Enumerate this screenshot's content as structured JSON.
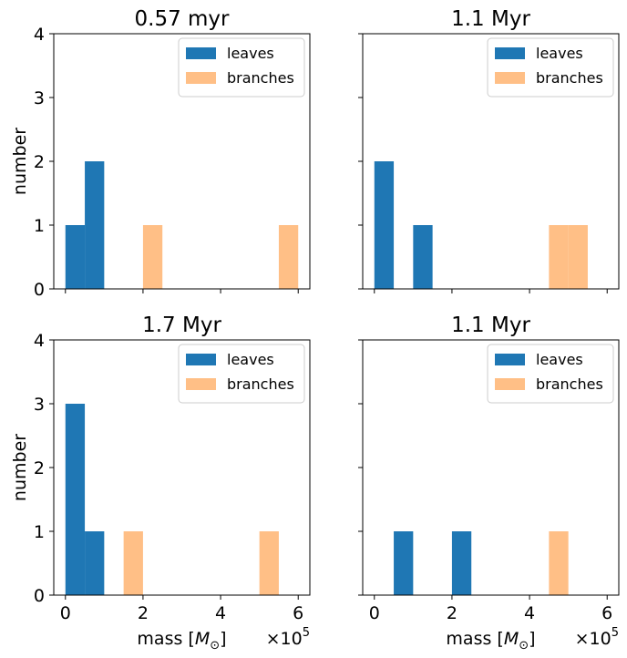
{
  "chart_data": [
    {
      "type": "bar",
      "title": "0.57 myr",
      "xlabel": "",
      "ylabel": "number",
      "xlim": [
        -0.3,
        6.3
      ],
      "ylim": [
        0,
        4
      ],
      "xticks": [
        "0",
        "2",
        "4",
        "6"
      ],
      "yticks": [
        "0",
        "1",
        "2",
        "3",
        "4"
      ],
      "x_multiplier": "",
      "legend_position": "top-right",
      "series": [
        {
          "name": "leaves",
          "color": "#1f77b4",
          "bins": [
            [
              0.0,
              0.5,
              1
            ],
            [
              0.5,
              1.0,
              2
            ]
          ]
        },
        {
          "name": "branches",
          "color": "#ffbf86",
          "bins": [
            [
              2.0,
              2.5,
              1
            ],
            [
              5.5,
              6.0,
              1
            ]
          ]
        }
      ]
    },
    {
      "type": "bar",
      "title": "1.1 Myr",
      "xlabel": "",
      "ylabel": "",
      "xlim": [
        -0.3,
        6.3
      ],
      "ylim": [
        0,
        4
      ],
      "xticks": [],
      "yticks": [],
      "x_multiplier": "",
      "legend_position": "top-right",
      "series": [
        {
          "name": "leaves",
          "color": "#1f77b4",
          "bins": [
            [
              0.0,
              0.5,
              2
            ],
            [
              1.0,
              1.5,
              1
            ]
          ]
        },
        {
          "name": "branches",
          "color": "#ffbf86",
          "bins": [
            [
              4.5,
              5.0,
              1
            ],
            [
              5.0,
              5.5,
              1
            ]
          ]
        }
      ]
    },
    {
      "type": "bar",
      "title": "1.7 Myr",
      "xlabel": "mass",
      "ylabel": "number",
      "xlim": [
        -0.3,
        6.3
      ],
      "ylim": [
        0,
        4
      ],
      "xticks": [
        "0",
        "2",
        "4",
        "6"
      ],
      "yticks": [
        "0",
        "1",
        "2",
        "3",
        "4"
      ],
      "x_multiplier": "×10",
      "x_multiplier_exp": "5",
      "legend_position": "top-right",
      "series": [
        {
          "name": "leaves",
          "color": "#1f77b4",
          "bins": [
            [
              0.0,
              0.5,
              3
            ],
            [
              0.5,
              1.0,
              1
            ]
          ]
        },
        {
          "name": "branches",
          "color": "#ffbf86",
          "bins": [
            [
              1.5,
              2.0,
              1
            ],
            [
              5.0,
              5.5,
              1
            ]
          ]
        }
      ]
    },
    {
      "type": "bar",
      "title": "1.1 Myr",
      "xlabel": "mass",
      "ylabel": "",
      "xlim": [
        -0.3,
        6.3
      ],
      "ylim": [
        0,
        4
      ],
      "xticks": [
        "0",
        "2",
        "4",
        "6"
      ],
      "yticks": [],
      "x_multiplier": "×10",
      "x_multiplier_exp": "5",
      "legend_position": "top-right",
      "series": [
        {
          "name": "leaves",
          "color": "#1f77b4",
          "bins": [
            [
              0.5,
              1.0,
              1
            ],
            [
              2.0,
              2.5,
              1
            ]
          ]
        },
        {
          "name": "branches",
          "color": "#ffbf86",
          "bins": [
            [
              4.5,
              5.0,
              1
            ]
          ]
        }
      ]
    }
  ]
}
